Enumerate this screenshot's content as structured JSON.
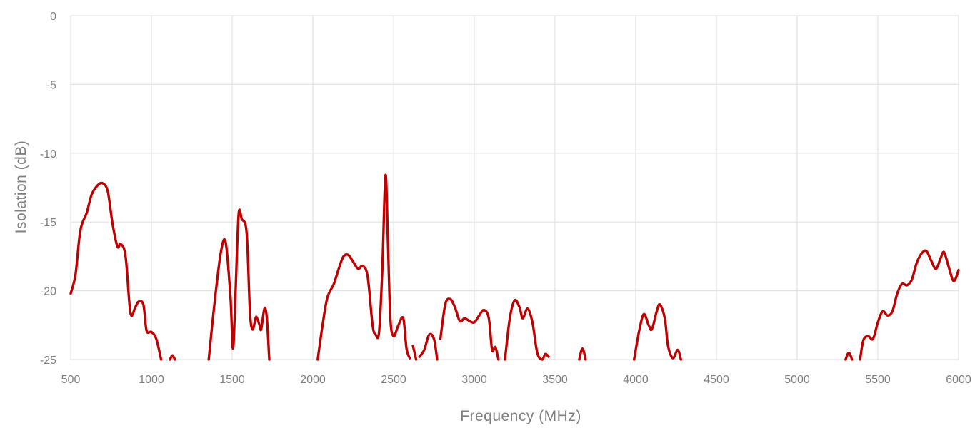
{
  "chart_data": {
    "type": "line",
    "title": "",
    "xlabel": "Frequency (MHz)",
    "ylabel": "Isolation (dB)",
    "xlim": [
      500,
      6000
    ],
    "ylim": [
      -25,
      0
    ],
    "x_ticks": [
      500,
      1000,
      1500,
      2000,
      2500,
      3000,
      3500,
      4000,
      4500,
      5000,
      5500,
      6000
    ],
    "y_ticks": [
      0,
      -5,
      -10,
      -15,
      -20,
      -25
    ],
    "grid": true,
    "legend": "none",
    "line_color": "#c00000",
    "series": [
      {
        "segments": [
          [
            [
              500,
              -20.2
            ],
            [
              530,
              -18.8
            ],
            [
              560,
              -15.6
            ],
            [
              600,
              -14.3
            ],
            [
              630,
              -13.0
            ],
            [
              670,
              -12.3
            ],
            [
              700,
              -12.2
            ],
            [
              730,
              -12.8
            ],
            [
              760,
              -15.2
            ],
            [
              790,
              -16.8
            ],
            [
              810,
              -16.6
            ],
            [
              840,
              -17.5
            ],
            [
              870,
              -21.6
            ],
            [
              900,
              -21.2
            ],
            [
              920,
              -20.8
            ],
            [
              950,
              -21.0
            ],
            [
              970,
              -22.9
            ],
            [
              1000,
              -23.0
            ],
            [
              1030,
              -23.5
            ],
            [
              1060,
              -25.0
            ]
          ],
          [
            [
              1115,
              -25.0
            ],
            [
              1130,
              -24.7
            ],
            [
              1145,
              -25.0
            ]
          ],
          [
            [
              1355,
              -25.0
            ],
            [
              1390,
              -21.0
            ],
            [
              1430,
              -17.2
            ],
            [
              1460,
              -16.5
            ],
            [
              1490,
              -20.5
            ],
            [
              1505,
              -24.2
            ],
            [
              1520,
              -20.5
            ],
            [
              1540,
              -14.5
            ],
            [
              1560,
              -14.8
            ],
            [
              1590,
              -15.8
            ],
            [
              1610,
              -21.5
            ],
            [
              1625,
              -22.8
            ],
            [
              1640,
              -22.3
            ],
            [
              1650,
              -21.9
            ],
            [
              1670,
              -22.5
            ],
            [
              1680,
              -22.8
            ],
            [
              1700,
              -21.3
            ],
            [
              1715,
              -22.0
            ],
            [
              1730,
              -25.0
            ]
          ],
          [
            [
              2030,
              -25.0
            ],
            [
              2060,
              -22.5
            ],
            [
              2090,
              -20.5
            ],
            [
              2130,
              -19.5
            ],
            [
              2160,
              -18.4
            ],
            [
              2190,
              -17.5
            ],
            [
              2220,
              -17.4
            ],
            [
              2250,
              -17.9
            ],
            [
              2280,
              -18.4
            ],
            [
              2310,
              -18.2
            ],
            [
              2340,
              -19.0
            ],
            [
              2370,
              -22.5
            ],
            [
              2390,
              -23.2
            ],
            [
              2410,
              -23.0
            ],
            [
              2430,
              -18.5
            ],
            [
              2450,
              -11.6
            ],
            [
              2465,
              -16.5
            ],
            [
              2480,
              -22.0
            ],
            [
              2500,
              -23.3
            ],
            [
              2530,
              -22.5
            ],
            [
              2560,
              -22.0
            ],
            [
              2580,
              -24.2
            ],
            [
              2600,
              -24.9
            ]
          ],
          [
            [
              2620,
              -24.0
            ],
            [
              2640,
              -25.0
            ]
          ],
          [
            [
              2660,
              -24.8
            ],
            [
              2690,
              -24.3
            ],
            [
              2720,
              -23.2
            ],
            [
              2750,
              -23.5
            ],
            [
              2770,
              -25.0
            ]
          ],
          [
            [
              2790,
              -23.5
            ],
            [
              2820,
              -21.0
            ],
            [
              2850,
              -20.6
            ],
            [
              2880,
              -21.2
            ],
            [
              2910,
              -22.2
            ],
            [
              2940,
              -22.0
            ],
            [
              2970,
              -22.2
            ],
            [
              3000,
              -22.3
            ],
            [
              3030,
              -21.8
            ],
            [
              3060,
              -21.4
            ],
            [
              3090,
              -22.0
            ],
            [
              3110,
              -24.3
            ],
            [
              3130,
              -24.1
            ],
            [
              3150,
              -25.0
            ]
          ],
          [
            [
              3190,
              -25.0
            ],
            [
              3220,
              -22.0
            ],
            [
              3250,
              -20.7
            ],
            [
              3280,
              -21.2
            ],
            [
              3300,
              -22.0
            ],
            [
              3330,
              -21.3
            ],
            [
              3360,
              -22.3
            ],
            [
              3390,
              -24.5
            ],
            [
              3420,
              -25.0
            ],
            [
              3440,
              -24.6
            ],
            [
              3460,
              -24.8
            ]
          ],
          [
            [
              3650,
              -25.0
            ],
            [
              3670,
              -24.2
            ],
            [
              3690,
              -25.0
            ]
          ],
          [
            [
              3990,
              -25.0
            ],
            [
              4020,
              -23.0
            ],
            [
              4050,
              -21.7
            ],
            [
              4080,
              -22.5
            ],
            [
              4100,
              -22.8
            ],
            [
              4130,
              -21.5
            ],
            [
              4150,
              -21.0
            ],
            [
              4180,
              -22.0
            ],
            [
              4200,
              -24.0
            ],
            [
              4230,
              -24.9
            ],
            [
              4260,
              -24.3
            ],
            [
              4280,
              -25.0
            ]
          ],
          [
            [
              5300,
              -25.0
            ],
            [
              5320,
              -24.5
            ],
            [
              5340,
              -25.0
            ]
          ],
          [
            [
              5390,
              -25.0
            ],
            [
              5410,
              -23.6
            ],
            [
              5440,
              -23.3
            ],
            [
              5470,
              -23.5
            ],
            [
              5500,
              -22.3
            ],
            [
              5530,
              -21.5
            ],
            [
              5560,
              -21.8
            ],
            [
              5590,
              -21.5
            ],
            [
              5620,
              -20.2
            ],
            [
              5650,
              -19.5
            ],
            [
              5680,
              -19.6
            ],
            [
              5710,
              -19.2
            ],
            [
              5740,
              -18.0
            ],
            [
              5770,
              -17.3
            ],
            [
              5800,
              -17.1
            ],
            [
              5830,
              -17.8
            ],
            [
              5860,
              -18.4
            ],
            [
              5890,
              -17.6
            ],
            [
              5910,
              -17.2
            ],
            [
              5940,
              -18.3
            ],
            [
              5970,
              -19.3
            ],
            [
              6000,
              -18.5
            ]
          ]
        ]
      }
    ]
  }
}
